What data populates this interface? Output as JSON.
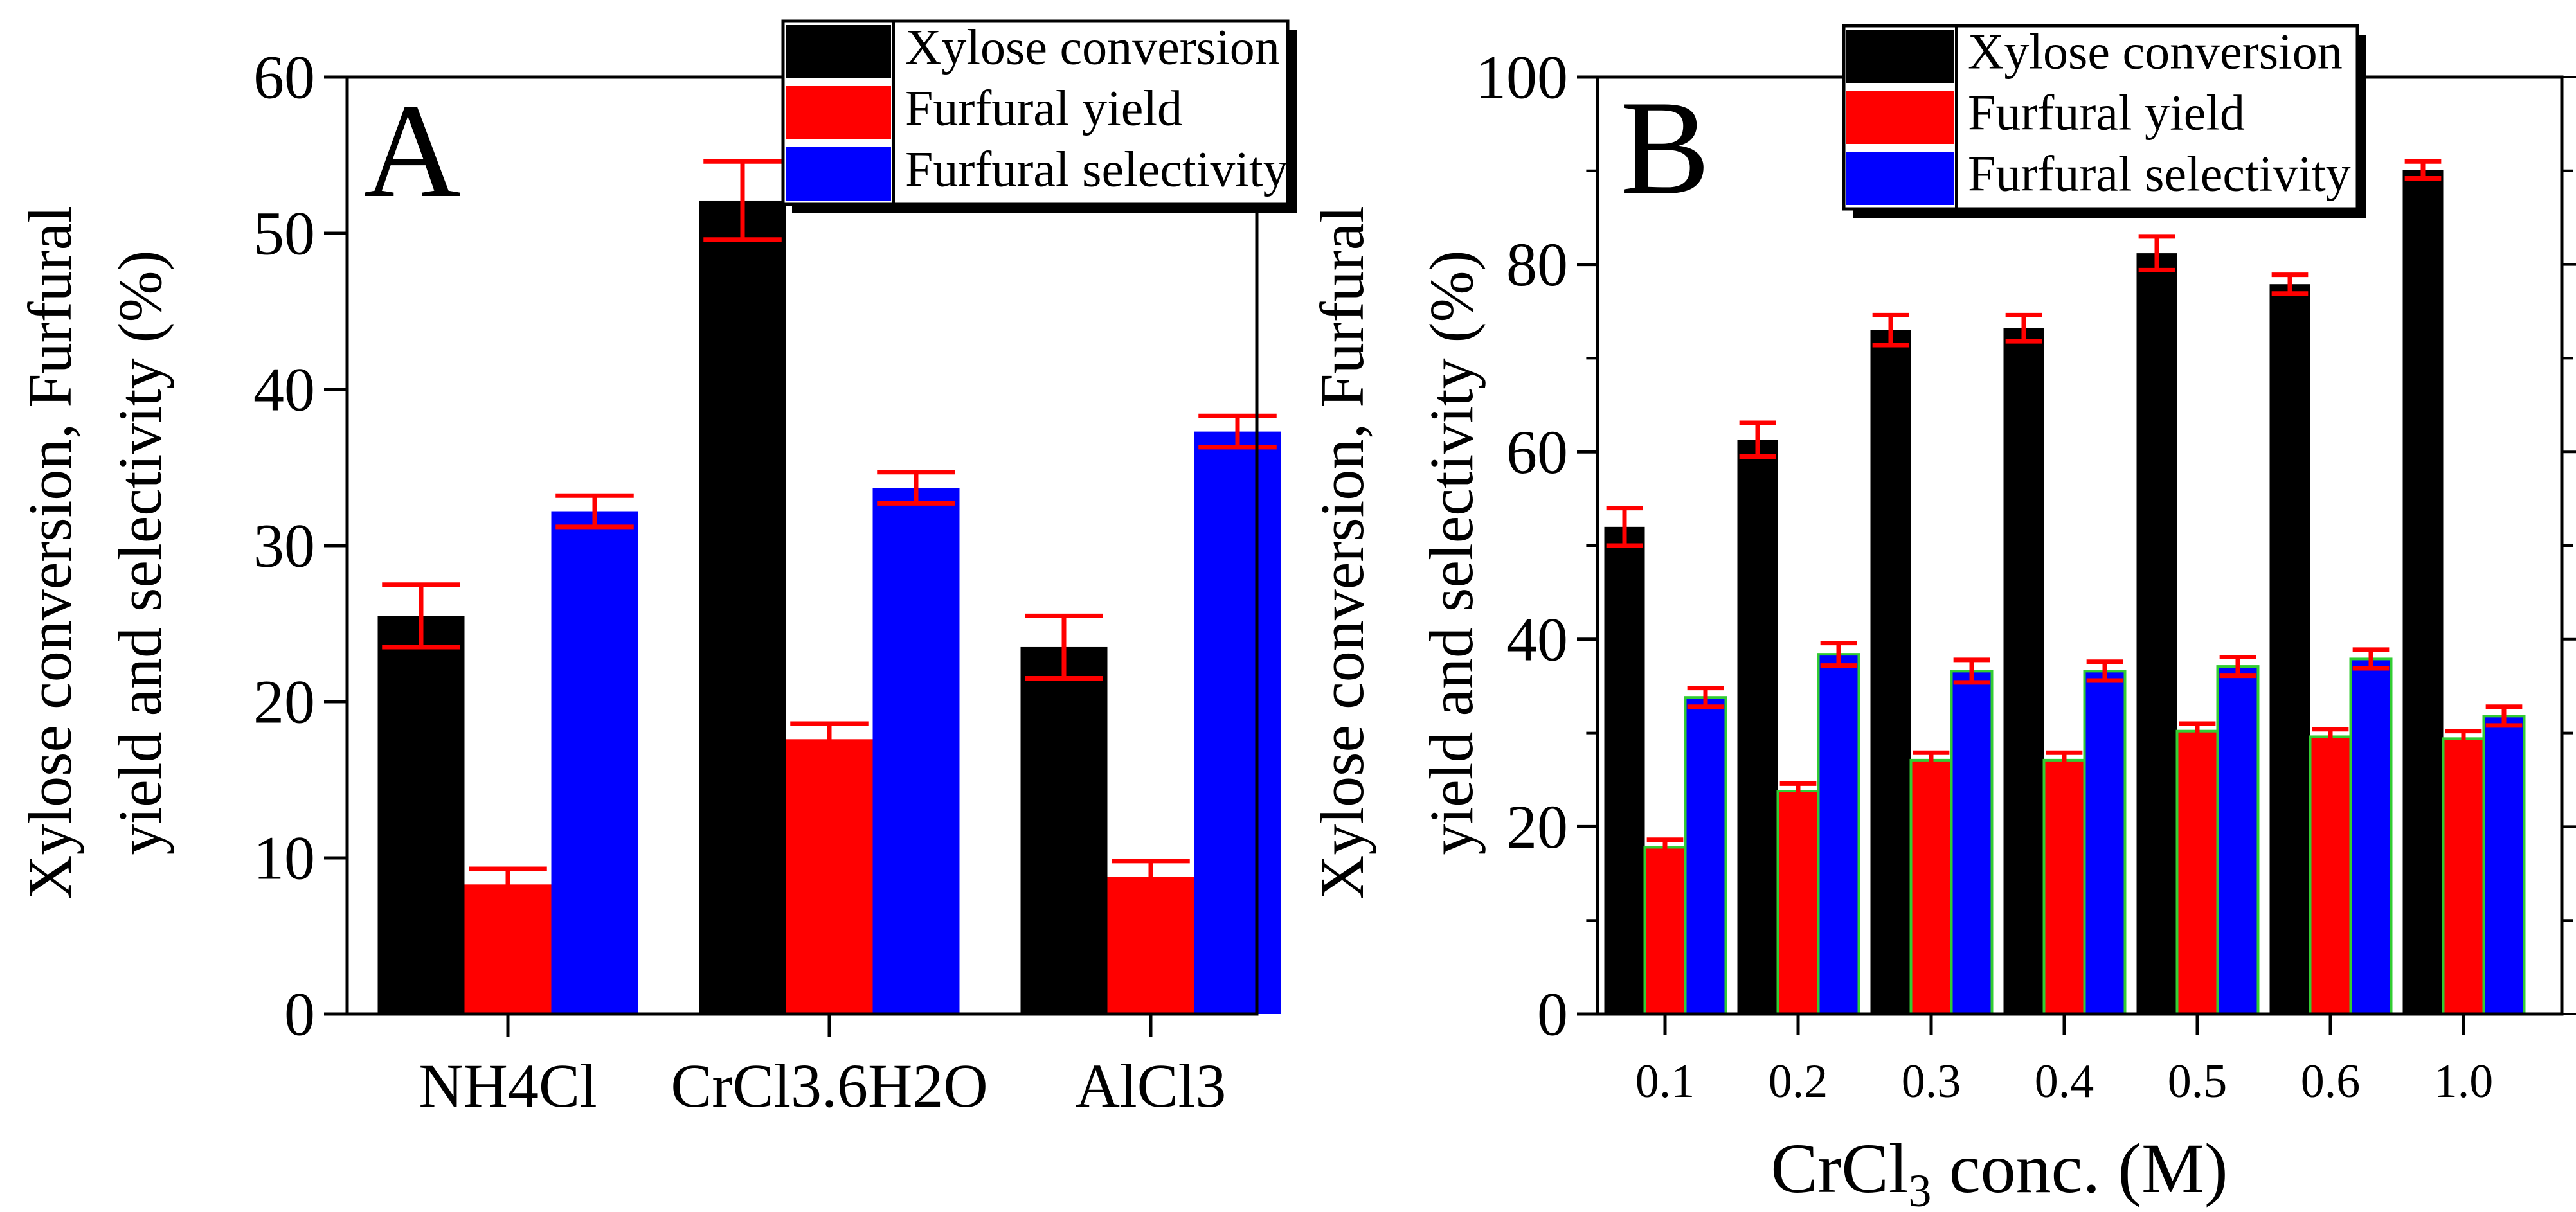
{
  "colors": {
    "series": [
      "#000000",
      "#ff0000",
      "#0000ff"
    ],
    "error_bar": "#ff0000",
    "b_outline": "#33cc33",
    "panel_a_letter": "#ff0000",
    "panel_b_letter": "#0000ff"
  },
  "chart_data": [
    {
      "type": "bar",
      "panel_label": "A",
      "title": "",
      "xlabel": "",
      "ylabel_lines": [
        "Xylose conversion, Furfural",
        "yield and selectivity (%)"
      ],
      "ylim": [
        0,
        60
      ],
      "yticks": [
        0,
        10,
        20,
        30,
        40,
        50,
        60
      ],
      "grid": false,
      "legend_position": "top-right",
      "categories": [
        "NH4Cl",
        "CrCl3.6H2O",
        "AlCl3"
      ],
      "series": [
        {
          "name": "Xylose conversion",
          "values": [
            25.5,
            52.1,
            23.5
          ],
          "errors": [
            2.0,
            2.5,
            2.0
          ]
        },
        {
          "name": "Furfural yield",
          "values": [
            8.3,
            17.6,
            8.8
          ],
          "errors": [
            1.0,
            1.0,
            1.0
          ]
        },
        {
          "name": "Furfural selectivity",
          "values": [
            32.2,
            33.7,
            37.3
          ],
          "errors": [
            1.0,
            1.0,
            1.0
          ]
        }
      ]
    },
    {
      "type": "bar",
      "panel_label": "B",
      "title": "",
      "xlabel_prefix": "CrCl",
      "xlabel_subscript": "3",
      "xlabel_suffix": " conc. (M)",
      "ylabel_lines": [
        "Xylose conversion, Furfural",
        "yield and selectivity (%)"
      ],
      "ylim": [
        0,
        100
      ],
      "yticks": [
        0,
        20,
        40,
        60,
        80,
        100
      ],
      "grid": false,
      "legend_position": "top-right",
      "categories": [
        "0.1",
        "0.2",
        "0.3",
        "0.4",
        "0.5",
        "0.6",
        "1.0"
      ],
      "series": [
        {
          "name": "Xylose conversion",
          "values": [
            52.0,
            61.3,
            73.0,
            73.2,
            81.2,
            77.9,
            90.1
          ],
          "errors": [
            2.0,
            1.8,
            1.6,
            1.4,
            1.8,
            1.0,
            0.9
          ]
        },
        {
          "name": "Furfural yield",
          "values": [
            17.8,
            23.8,
            27.1,
            27.1,
            30.2,
            29.6,
            29.4
          ],
          "errors": [
            0.8,
            0.8,
            0.8,
            0.8,
            0.8,
            0.8,
            0.8
          ]
        },
        {
          "name": "Furfural selectivity",
          "values": [
            33.8,
            38.4,
            36.6,
            36.6,
            37.1,
            37.9,
            31.8
          ],
          "errors": [
            1.0,
            1.2,
            1.2,
            1.0,
            1.0,
            1.0,
            1.0
          ]
        }
      ]
    }
  ]
}
